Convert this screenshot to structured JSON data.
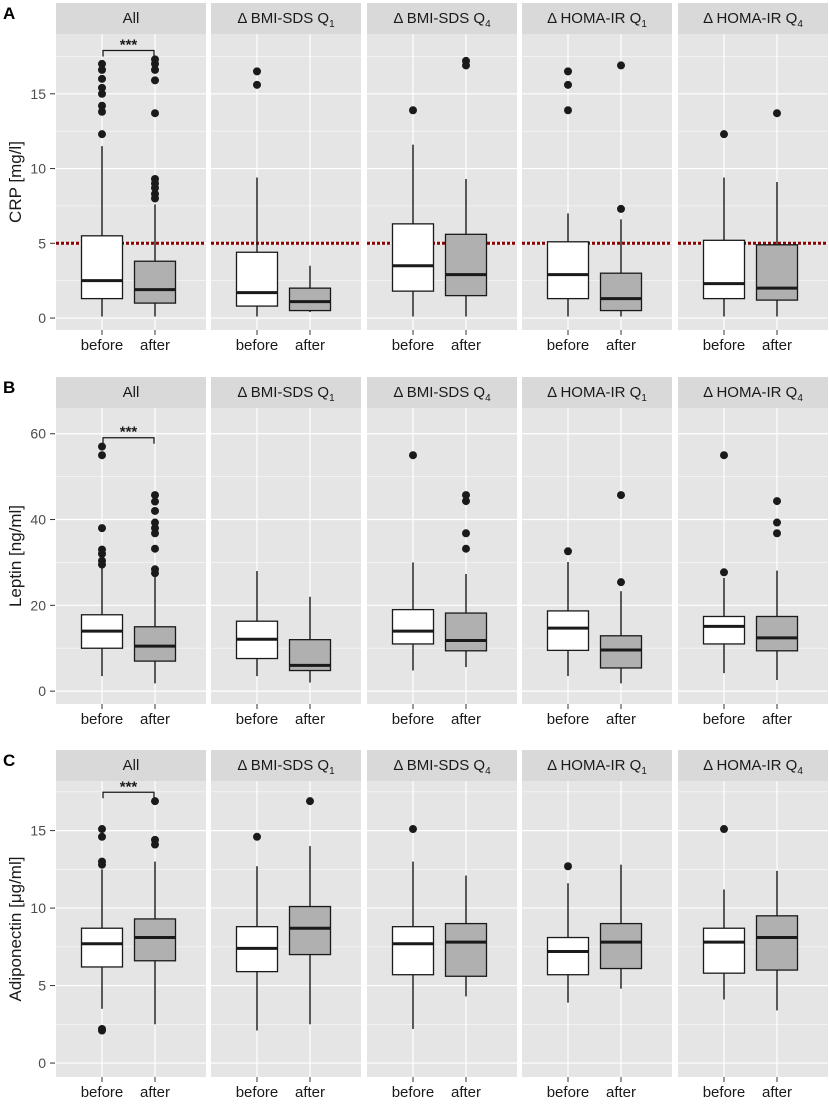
{
  "colors": {
    "panel_bg": "#e5e5e5",
    "strip_bg": "#d9d9d9",
    "grid": "#ffffff",
    "before_fill": "#ffffff",
    "after_fill": "#b0b0b0",
    "box_line": "#1a1a1a",
    "reference_line": "#8b0000"
  },
  "chart_data": [
    {
      "type": "box",
      "tag": "A",
      "ylabel": "CRP [mg/l]",
      "ylim": [
        -0.8,
        19
      ],
      "yticks": [
        0,
        5,
        10,
        15
      ],
      "ytick_labels": [
        "0",
        "5",
        "10",
        "15"
      ],
      "categories": [
        "before",
        "after"
      ],
      "reference_line": 5,
      "facets": [
        {
          "label": "All",
          "significance": "***",
          "boxes": [
            {
              "group": "before",
              "min": 0.1,
              "q1": 1.3,
              "median": 2.5,
              "q3": 5.5,
              "max": 11.5,
              "outliers": [
                12.3,
                13.8,
                14.2,
                15.0,
                15.4,
                16.0,
                16.6,
                17.0
              ]
            },
            {
              "group": "after",
              "min": 0.1,
              "q1": 1.0,
              "median": 1.9,
              "q3": 3.8,
              "max": 7.6,
              "outliers": [
                8.0,
                8.3,
                8.7,
                9.0,
                9.3,
                13.7,
                15.9,
                16.6,
                17.0,
                17.3
              ]
            }
          ]
        },
        {
          "label": "Δ BMI-SDS Q",
          "subscript": "1",
          "boxes": [
            {
              "group": "before",
              "min": 0.1,
              "q1": 0.8,
              "median": 1.7,
              "q3": 4.4,
              "max": 9.4,
              "outliers": [
                15.6,
                16.5
              ]
            },
            {
              "group": "after",
              "min": 0.4,
              "q1": 0.5,
              "median": 1.1,
              "q3": 2.0,
              "max": 3.5,
              "outliers": []
            }
          ]
        },
        {
          "label": "Δ BMI-SDS Q",
          "subscript": "4",
          "boxes": [
            {
              "group": "before",
              "min": 0.1,
              "q1": 1.8,
              "median": 3.5,
              "q3": 6.3,
              "max": 11.6,
              "outliers": [
                13.9
              ]
            },
            {
              "group": "after",
              "min": 0.1,
              "q1": 1.5,
              "median": 2.9,
              "q3": 5.6,
              "max": 9.3,
              "outliers": [
                16.9,
                17.2
              ]
            }
          ]
        },
        {
          "label": "Δ HOMA-IR Q",
          "subscript": "1",
          "boxes": [
            {
              "group": "before",
              "min": 0.1,
              "q1": 1.3,
              "median": 2.9,
              "q3": 5.1,
              "max": 7.0,
              "outliers": [
                13.9,
                15.6,
                16.5
              ]
            },
            {
              "group": "after",
              "min": 0.1,
              "q1": 0.5,
              "median": 1.3,
              "q3": 3.0,
              "max": 6.6,
              "outliers": [
                7.3,
                16.9
              ]
            }
          ]
        },
        {
          "label": "Δ HOMA-IR Q",
          "subscript": "4",
          "boxes": [
            {
              "group": "before",
              "min": 0.1,
              "q1": 1.3,
              "median": 2.3,
              "q3": 5.2,
              "max": 9.4,
              "outliers": [
                12.3
              ]
            },
            {
              "group": "after",
              "min": 0.1,
              "q1": 1.2,
              "median": 2.0,
              "q3": 4.9,
              "max": 9.1,
              "outliers": [
                13.7
              ]
            }
          ]
        }
      ]
    },
    {
      "type": "box",
      "tag": "B",
      "ylabel": "Leptin [ng/ml]",
      "ylim": [
        -3,
        66
      ],
      "yticks": [
        0,
        20,
        40,
        60
      ],
      "ytick_labels": [
        "0",
        "20",
        "40",
        "60"
      ],
      "categories": [
        "before",
        "after"
      ],
      "facets": [
        {
          "label": "All",
          "significance": "***",
          "boxes": [
            {
              "group": "before",
              "min": 3.5,
              "q1": 10.0,
              "median": 14.0,
              "q3": 17.8,
              "max": 28.7,
              "outliers": [
                29.5,
                30.4,
                32.0,
                33.0,
                38.0,
                55.0,
                57.0
              ]
            },
            {
              "group": "after",
              "min": 1.8,
              "q1": 7.0,
              "median": 10.5,
              "q3": 15.0,
              "max": 26.7,
              "outliers": [
                27.5,
                28.4,
                33.2,
                36.8,
                38.0,
                39.3,
                42.0,
                44.2,
                45.7
              ]
            }
          ]
        },
        {
          "label": "Δ BMI-SDS Q",
          "subscript": "1",
          "boxes": [
            {
              "group": "before",
              "min": 3.5,
              "q1": 7.6,
              "median": 12.1,
              "q3": 16.3,
              "max": 28.0,
              "outliers": []
            },
            {
              "group": "after",
              "min": 2.0,
              "q1": 4.8,
              "median": 6.0,
              "q3": 12.0,
              "max": 22.0,
              "outliers": []
            }
          ]
        },
        {
          "label": "Δ BMI-SDS Q",
          "subscript": "4",
          "boxes": [
            {
              "group": "before",
              "min": 4.8,
              "q1": 11.0,
              "median": 14.0,
              "q3": 19.0,
              "max": 30.0,
              "outliers": [
                55.0
              ]
            },
            {
              "group": "after",
              "min": 5.6,
              "q1": 9.4,
              "median": 11.8,
              "q3": 18.2,
              "max": 27.3,
              "outliers": [
                33.2,
                36.8,
                44.3,
                45.7
              ]
            }
          ]
        },
        {
          "label": "Δ HOMA-IR Q",
          "subscript": "1",
          "boxes": [
            {
              "group": "before",
              "min": 3.5,
              "q1": 9.5,
              "median": 14.7,
              "q3": 18.7,
              "max": 30.1,
              "outliers": [
                32.6
              ]
            },
            {
              "group": "after",
              "min": 1.8,
              "q1": 5.4,
              "median": 9.6,
              "q3": 12.9,
              "max": 23.3,
              "outliers": [
                25.4,
                45.7
              ]
            }
          ]
        },
        {
          "label": "Δ HOMA-IR Q",
          "subscript": "4",
          "boxes": [
            {
              "group": "before",
              "min": 4.2,
              "q1": 11.0,
              "median": 15.1,
              "q3": 17.4,
              "max": 26.4,
              "outliers": [
                27.7,
                55.0
              ]
            },
            {
              "group": "after",
              "min": 2.6,
              "q1": 9.4,
              "median": 12.4,
              "q3": 17.4,
              "max": 28.1,
              "outliers": [
                36.8,
                39.3,
                44.3
              ]
            }
          ]
        }
      ]
    },
    {
      "type": "box",
      "tag": "C",
      "ylabel": "Adiponectin [μg/ml]",
      "ylim": [
        -0.9,
        18.2
      ],
      "yticks": [
        0,
        5,
        10,
        15
      ],
      "ytick_labels": [
        "0",
        "5",
        "10",
        "15"
      ],
      "categories": [
        "before",
        "after"
      ],
      "facets": [
        {
          "label": "All",
          "significance": "***",
          "boxes": [
            {
              "group": "before",
              "min": 3.5,
              "q1": 6.2,
              "median": 7.7,
              "q3": 8.7,
              "max": 12.5,
              "outliers": [
                2.1,
                2.2,
                12.8,
                13.0,
                14.6,
                15.1
              ]
            },
            {
              "group": "after",
              "min": 2.5,
              "q1": 6.6,
              "median": 8.1,
              "q3": 9.3,
              "max": 13.0,
              "outliers": [
                14.1,
                14.4,
                16.9
              ]
            }
          ]
        },
        {
          "label": "Δ BMI-SDS Q",
          "subscript": "1",
          "boxes": [
            {
              "group": "before",
              "min": 2.1,
              "q1": 5.9,
              "median": 7.4,
              "q3": 8.8,
              "max": 12.7,
              "outliers": [
                14.6
              ]
            },
            {
              "group": "after",
              "min": 2.5,
              "q1": 7.0,
              "median": 8.7,
              "q3": 10.1,
              "max": 14.0,
              "outliers": [
                16.9
              ]
            }
          ]
        },
        {
          "label": "Δ BMI-SDS Q",
          "subscript": "4",
          "boxes": [
            {
              "group": "before",
              "min": 2.2,
              "q1": 5.7,
              "median": 7.7,
              "q3": 8.8,
              "max": 13.0,
              "outliers": [
                15.1
              ]
            },
            {
              "group": "after",
              "min": 4.3,
              "q1": 5.6,
              "median": 7.8,
              "q3": 9.0,
              "max": 12.1,
              "outliers": []
            }
          ]
        },
        {
          "label": "Δ HOMA-IR Q",
          "subscript": "1",
          "boxes": [
            {
              "group": "before",
              "min": 3.9,
              "q1": 5.7,
              "median": 7.2,
              "q3": 8.1,
              "max": 11.6,
              "outliers": [
                12.7
              ]
            },
            {
              "group": "after",
              "min": 4.8,
              "q1": 6.1,
              "median": 7.8,
              "q3": 9.0,
              "max": 12.8,
              "outliers": []
            }
          ]
        },
        {
          "label": "Δ HOMA-IR Q",
          "subscript": "4",
          "boxes": [
            {
              "group": "before",
              "min": 4.1,
              "q1": 5.8,
              "median": 7.8,
              "q3": 8.7,
              "max": 11.2,
              "outliers": [
                15.1
              ]
            },
            {
              "group": "after",
              "min": 3.4,
              "q1": 6.0,
              "median": 8.1,
              "q3": 9.5,
              "max": 12.4,
              "outliers": []
            }
          ]
        }
      ]
    }
  ]
}
